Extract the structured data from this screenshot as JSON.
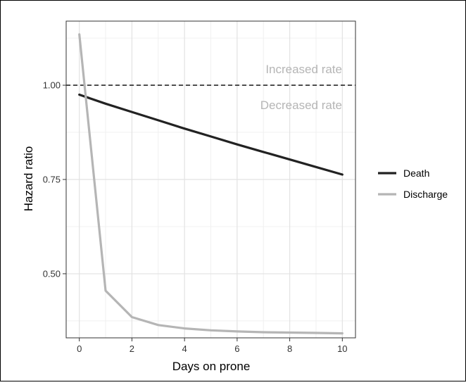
{
  "chart_data": {
    "type": "line",
    "title": "",
    "xlabel": "Days on prone",
    "ylabel": "Hazard ratio",
    "xlim": [
      -0.5,
      10.5
    ],
    "ylim": [
      0.33,
      1.17
    ],
    "x_ticks": [
      0,
      2,
      4,
      6,
      8,
      10
    ],
    "x_tick_labels": [
      "0",
      "2",
      "4",
      "6",
      "8",
      "10"
    ],
    "y_ticks": [
      0.5,
      0.75,
      1.0
    ],
    "y_tick_labels": [
      "0.50",
      "0.75",
      "1.00"
    ],
    "grid": true,
    "legend_position": "right",
    "reference_line": {
      "y": 1.0,
      "style": "dashed"
    },
    "annotations": {
      "above": "Increased rate",
      "below": "Decreased rate"
    },
    "series": [
      {
        "name": "Death",
        "color": "#222222",
        "x": [
          0,
          1,
          2,
          3,
          4,
          5,
          6,
          7,
          8,
          9,
          10
        ],
        "values": [
          0.975,
          0.951,
          0.929,
          0.907,
          0.885,
          0.864,
          0.843,
          0.823,
          0.803,
          0.783,
          0.763
        ]
      },
      {
        "name": "Discharge",
        "color": "#b5b5b5",
        "x": [
          0,
          1,
          2,
          3,
          4,
          5,
          6,
          7,
          8,
          9,
          10
        ],
        "values": [
          1.135,
          0.455,
          0.385,
          0.364,
          0.355,
          0.35,
          0.347,
          0.345,
          0.344,
          0.343,
          0.342
        ]
      }
    ]
  }
}
